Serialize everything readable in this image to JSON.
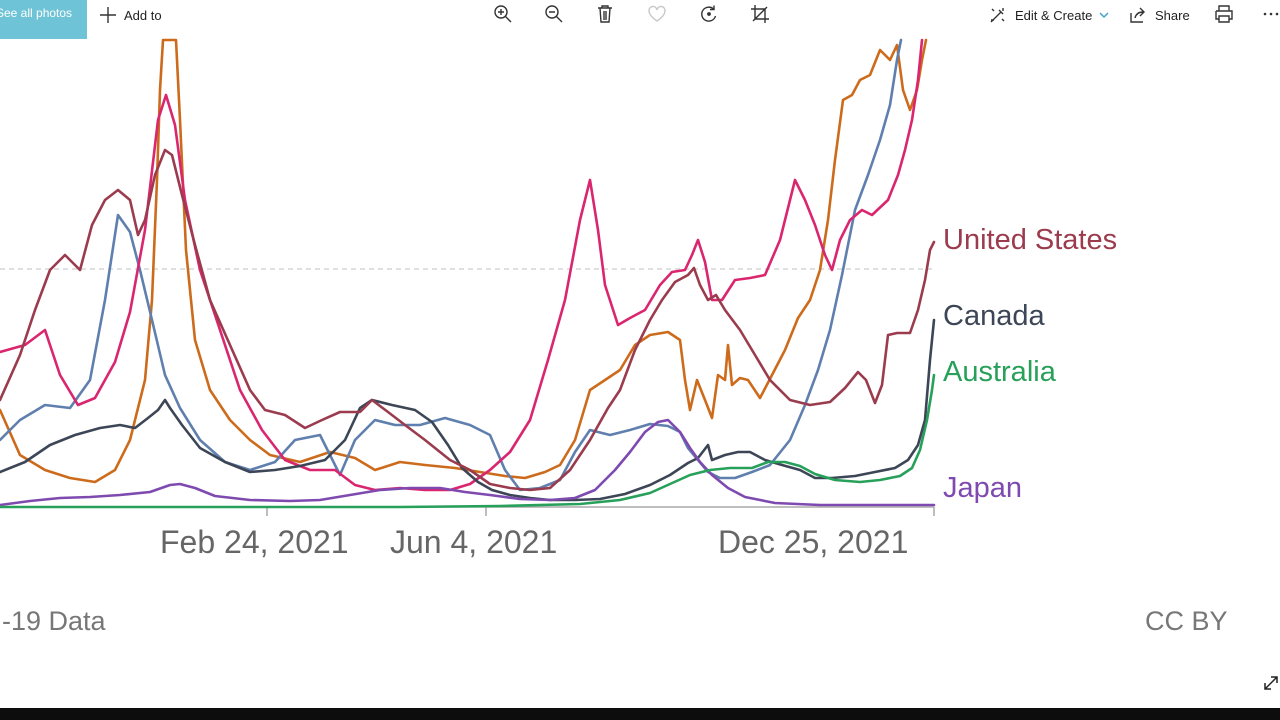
{
  "toolbar": {
    "see_all_label": "See all photos",
    "add_to_label": "Add to",
    "edit_create_label": "Edit & Create",
    "share_label": "Share",
    "icons": [
      "zoom-in-icon",
      "zoom-out-icon",
      "delete-icon",
      "favorite-icon",
      "rotate-icon",
      "crop-icon",
      "print-icon",
      "more-icon"
    ]
  },
  "colors": {
    "accent": "#6fc3d6",
    "united_states": "#9b3b4e",
    "canada": "#3d4656",
    "australia": "#27a05a",
    "japan": "#7e4ab0",
    "magenta_series": "#d9266f",
    "orange_series": "#cd6b1c",
    "blue_series": "#5f7fae"
  },
  "chart_data": {
    "type": "line",
    "x_ticks": [
      "Feb 24, 2021",
      "Jun 4, 2021",
      "Dec 25, 2021"
    ],
    "series": [
      {
        "name": "United States",
        "color": "#9b3b4e"
      },
      {
        "name": "Canada",
        "color": "#3d4656"
      },
      {
        "name": "Australia",
        "color": "#27a05a"
      },
      {
        "name": "Japan",
        "color": "#7e4ab0"
      }
    ],
    "grid": "single dashed reference line",
    "legend": "right, inline labels at line ends"
  },
  "footer": {
    "source_text": "-19 Data",
    "license_text": "CC BY"
  }
}
